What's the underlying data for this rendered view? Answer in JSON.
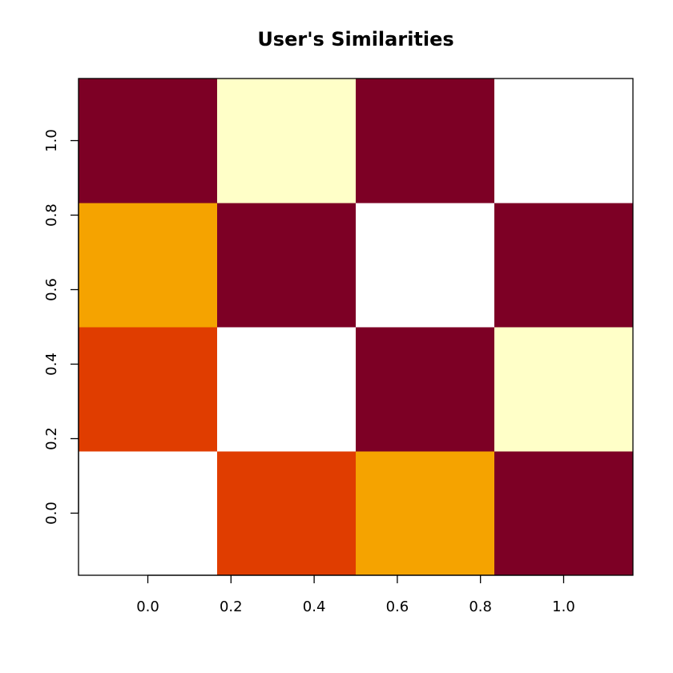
{
  "chart_data": {
    "type": "heatmap",
    "title": "User's Similarities",
    "xlabel": "",
    "ylabel": "",
    "x_ticks": [
      "0.0",
      "0.2",
      "0.4",
      "0.6",
      "0.8",
      "1.0"
    ],
    "y_ticks": [
      "0.0",
      "0.2",
      "0.4",
      "0.6",
      "0.8",
      "1.0"
    ],
    "x_range": [
      -0.1667,
      1.1667
    ],
    "y_range": [
      -0.1667,
      1.1667
    ],
    "x_centers": [
      0.0,
      0.3333,
      0.6667,
      1.0
    ],
    "y_centers": [
      0.0,
      0.3333,
      0.6667,
      1.0
    ],
    "grid": false,
    "legend": "none",
    "cells": [
      [
        0,
        3,
        2,
        1
      ],
      [
        3,
        0,
        1,
        2
      ],
      [
        2,
        1,
        0,
        1
      ],
      [
        1,
        2,
        1,
        0
      ]
    ],
    "palette": [
      "#FFFFFF",
      "#FFFFC8",
      "#F5A300",
      "#E03D00",
      "#7D0025"
    ],
    "cell_colors": [
      [
        "#FFFFFF",
        "#E03D00",
        "#F5A300",
        "#7D0025"
      ],
      [
        "#E03D00",
        "#FFFFFF",
        "#7D0025",
        "#FFFFC8"
      ],
      [
        "#F5A300",
        "#7D0025",
        "#FFFFFF",
        "#7D0025"
      ],
      [
        "#7D0025",
        "#FFFFC8",
        "#7D0025",
        "#FFFFFF"
      ]
    ]
  }
}
